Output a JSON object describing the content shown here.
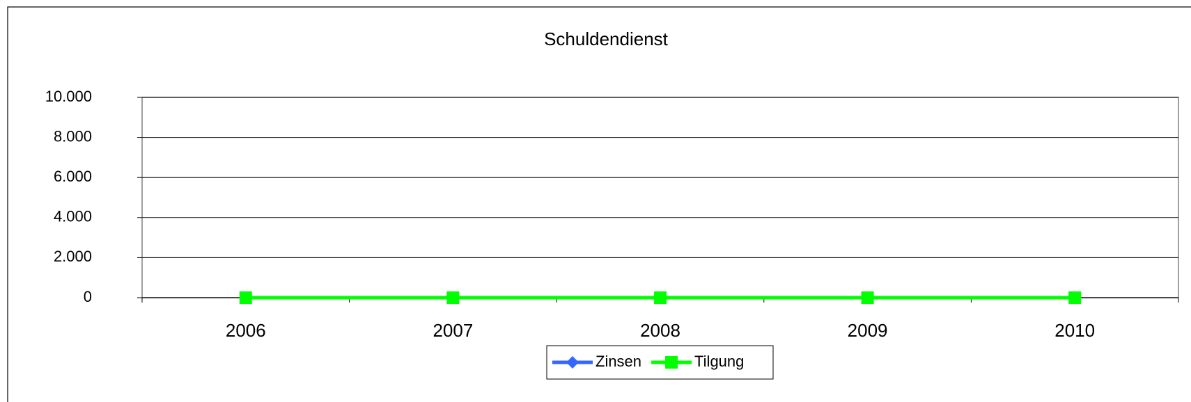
{
  "chart_data": {
    "type": "line",
    "title": "Schuldendienst",
    "categories": [
      "2006",
      "2007",
      "2008",
      "2009",
      "2010"
    ],
    "series": [
      {
        "name": "Zinsen",
        "color": "#3366ff",
        "marker": "diamond",
        "values": [
          0,
          0,
          0,
          0,
          0
        ]
      },
      {
        "name": "Tilgung",
        "color": "#00ff00",
        "marker": "square",
        "values": [
          0,
          0,
          0,
          0,
          0
        ]
      }
    ],
    "ylim": [
      0,
      10000
    ],
    "yticks": [
      0,
      {
        "value": 2000,
        "label": "2.000"
      },
      {
        "value": 4000,
        "label": "4.000"
      },
      {
        "value": 6000,
        "label": "6.000"
      },
      {
        "value": 8000,
        "label": "8.000"
      },
      {
        "value": 10000,
        "label": "10.000"
      }
    ],
    "grid": true,
    "legend": "bottom"
  }
}
